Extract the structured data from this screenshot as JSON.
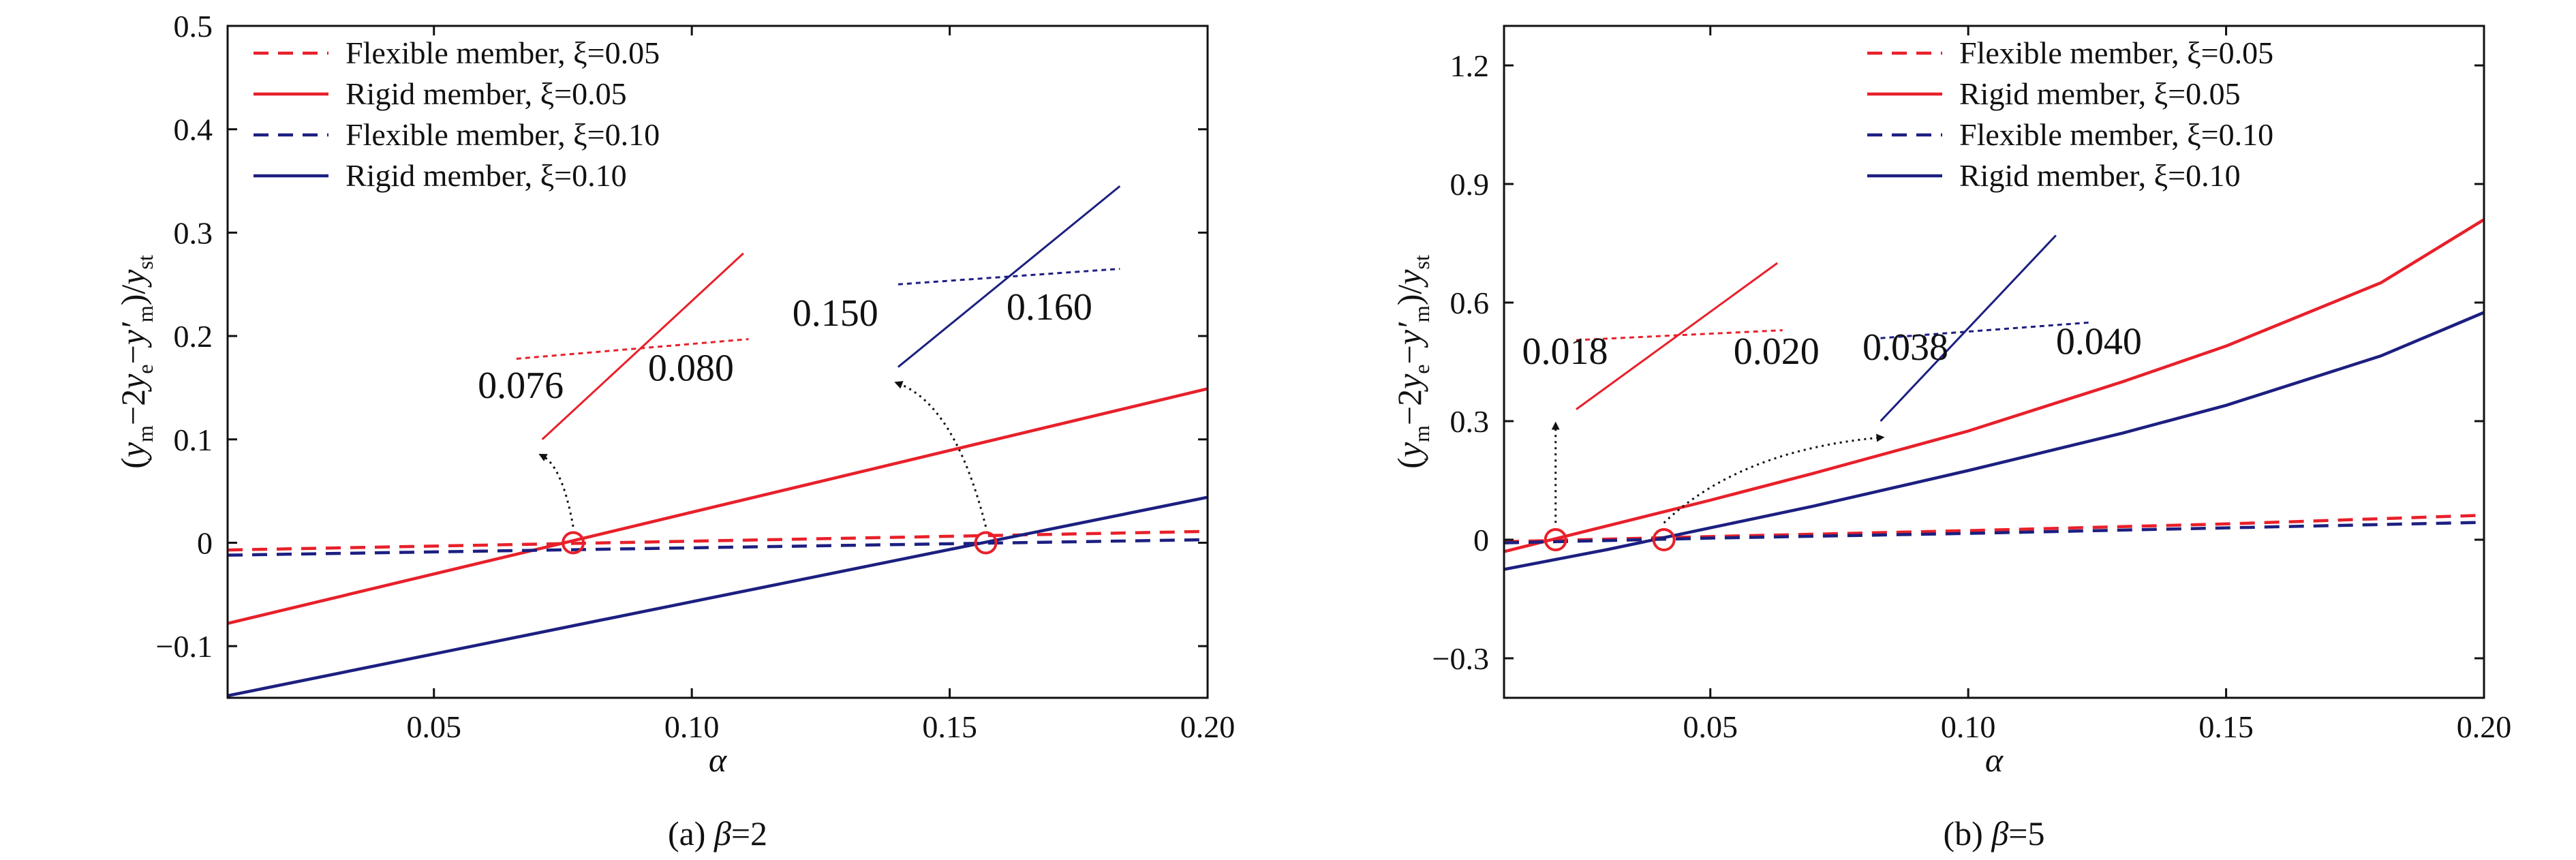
{
  "colors": {
    "red": "#e8202a",
    "blue": "#1c1f80",
    "black": "#111111"
  },
  "chart_data": [
    {
      "type": "line",
      "caption": "(a) β=2",
      "xlabel": "α",
      "ylabel": "(ym−2ye−y′m)/yst",
      "xlim": [
        0.01,
        0.2
      ],
      "ylim": [
        -0.15,
        0.5
      ],
      "xticks": [
        0.05,
        0.1,
        0.15,
        0.2
      ],
      "xtick_labels": [
        "0.05",
        "0.10",
        "0.15",
        "0.20"
      ],
      "yticks": [
        -0.1,
        0,
        0.1,
        0.2,
        0.3,
        0.4,
        0.5
      ],
      "ytick_labels": [
        "−0.1",
        "0",
        "0.1",
        "0.2",
        "0.3",
        "0.4",
        "0.5"
      ],
      "legend_position": "top-left",
      "series": [
        {
          "name": "Flexible member, ξ=0.05",
          "color": "#e8202a",
          "style": "dashed",
          "x": [
            0.01,
            0.2
          ],
          "y": [
            -0.007,
            0.011
          ]
        },
        {
          "name": "Rigid member, ξ=0.05",
          "color": "#e8202a",
          "style": "solid",
          "x": [
            0.01,
            0.2
          ],
          "y": [
            -0.078,
            0.149
          ]
        },
        {
          "name": "Flexible member, ξ=0.10",
          "color": "#1c1f80",
          "style": "dashed",
          "x": [
            0.01,
            0.2
          ],
          "y": [
            -0.012,
            0.003
          ]
        },
        {
          "name": "Rigid member, ξ=0.10",
          "color": "#1c1f80",
          "style": "solid",
          "x": [
            0.01,
            0.2
          ],
          "y": [
            -0.148,
            0.044
          ]
        }
      ],
      "markers": [
        {
          "x": 0.077,
          "y": 0
        },
        {
          "x": 0.157,
          "y": 0
        }
      ],
      "insets": [
        {
          "color": "#e8202a",
          "from": {
            "x": 0.077,
            "y": 0.005
          },
          "solid": {
            "x": [
              0.071,
              0.11
            ],
            "y": [
              0.1,
              0.28
            ]
          },
          "dashed": {
            "x": [
              0.066,
              0.111
            ],
            "y": [
              0.178,
              0.197
            ]
          },
          "labels": [
            {
              "text": "0.076",
              "x": 0.0585,
              "y": 0.14
            },
            {
              "text": "0.080",
              "x": 0.0915,
              "y": 0.157
            }
          ]
        },
        {
          "color": "#1c1f80",
          "from": {
            "x": 0.157,
            "y": 0.005
          },
          "solid": {
            "x": [
              0.14,
              0.183
            ],
            "y": [
              0.17,
              0.345
            ]
          },
          "dashed": {
            "x": [
              0.14,
              0.183
            ],
            "y": [
              0.25,
              0.265
            ]
          },
          "labels": [
            {
              "text": "0.150",
              "x": 0.1195,
              "y": 0.21
            },
            {
              "text": "0.160",
              "x": 0.161,
              "y": 0.216
            }
          ]
        }
      ]
    },
    {
      "type": "line",
      "caption": "(b) β=5",
      "xlabel": "α",
      "ylabel": "(ym−2ye−y′m)/yst",
      "xlim": [
        0.01,
        0.2
      ],
      "ylim": [
        -0.4,
        1.3
      ],
      "xticks": [
        0.05,
        0.1,
        0.15,
        0.2
      ],
      "xtick_labels": [
        "0.05",
        "0.10",
        "0.15",
        "0.20"
      ],
      "yticks": [
        -0.3,
        0,
        0.3,
        0.6,
        0.9,
        1.2
      ],
      "ytick_labels": [
        "−0.3",
        "0",
        "0.3",
        "0.6",
        "0.9",
        "1.2"
      ],
      "legend_position": "top-right",
      "series": [
        {
          "name": "Flexible member, ξ=0.05",
          "color": "#e8202a",
          "style": "dashed",
          "x": [
            0.01,
            0.05,
            0.1,
            0.15,
            0.2
          ],
          "y": [
            -0.005,
            0.008,
            0.023,
            0.04,
            0.062
          ]
        },
        {
          "name": "Rigid member, ξ=0.05",
          "color": "#e8202a",
          "style": "solid",
          "x": [
            0.01,
            0.03,
            0.05,
            0.07,
            0.1,
            0.13,
            0.15,
            0.18,
            0.2
          ],
          "y": [
            -0.03,
            0.035,
            0.1,
            0.168,
            0.275,
            0.4,
            0.49,
            0.65,
            0.81
          ]
        },
        {
          "name": "Flexible member, ξ=0.10",
          "color": "#1c1f80",
          "style": "dashed",
          "x": [
            0.01,
            0.05,
            0.1,
            0.15,
            0.2
          ],
          "y": [
            -0.008,
            0.004,
            0.016,
            0.03,
            0.044
          ]
        },
        {
          "name": "Rigid member, ξ=0.10",
          "color": "#1c1f80",
          "style": "solid",
          "x": [
            0.01,
            0.03,
            0.05,
            0.07,
            0.1,
            0.13,
            0.15,
            0.18,
            0.2
          ],
          "y": [
            -0.075,
            -0.025,
            0.03,
            0.085,
            0.175,
            0.27,
            0.34,
            0.465,
            0.575
          ]
        }
      ],
      "markers": [
        {
          "x": 0.02,
          "y": 0
        },
        {
          "x": 0.041,
          "y": 0
        }
      ],
      "insets": [
        {
          "color": "#e8202a",
          "from": {
            "x": 0.02,
            "y": 0.015
          },
          "solid": {
            "x": [
              0.024,
              0.063
            ],
            "y": [
              0.33,
              0.7
            ]
          },
          "dashed": {
            "x": [
              0.024,
              0.064
            ],
            "y": [
              0.505,
              0.53
            ]
          },
          "labels": [
            {
              "text": "0.018",
              "x": 0.0135,
              "y": 0.445
            },
            {
              "text": "0.020",
              "x": 0.0545,
              "y": 0.445
            }
          ]
        },
        {
          "color": "#1c1f80",
          "from": {
            "x": 0.041,
            "y": 0.015
          },
          "solid": {
            "x": [
              0.083,
              0.117
            ],
            "y": [
              0.3,
              0.77
            ]
          },
          "dashed": {
            "x": [
              0.083,
              0.124
            ],
            "y": [
              0.51,
              0.55
            ]
          },
          "labels": [
            {
              "text": "0.038",
              "x": 0.0795,
              "y": 0.455
            },
            {
              "text": "0.040",
              "x": 0.117,
              "y": 0.47
            }
          ]
        }
      ]
    }
  ]
}
